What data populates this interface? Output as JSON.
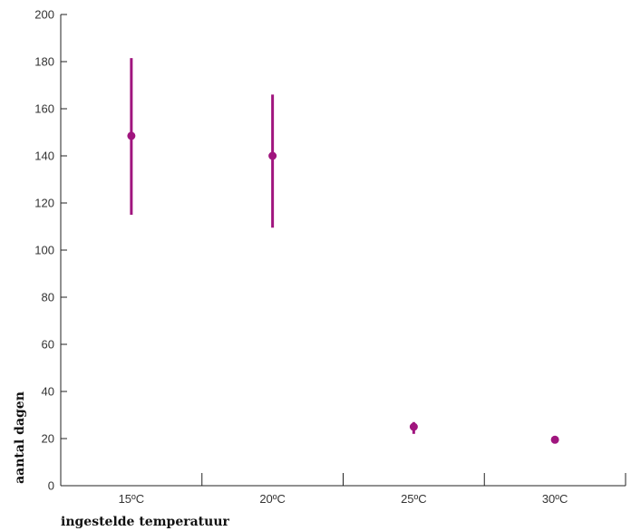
{
  "chart_data": {
    "type": "scatter",
    "title": "",
    "xlabel": "ingestelde temperatuur",
    "ylabel": "aantal dagen",
    "categories": [
      "15ºC",
      "20ºC",
      "25ºC",
      "30ºC"
    ],
    "series": [
      {
        "values": [
          148.5,
          140,
          25,
          19.5
        ],
        "error_low": [
          115,
          109.5,
          22,
          18
        ],
        "error_high": [
          181.5,
          166,
          27,
          21
        ],
        "color": "#a0157e"
      }
    ],
    "ylim": [
      0,
      200
    ],
    "yticks": [
      0,
      20,
      40,
      60,
      80,
      100,
      120,
      140,
      160,
      180,
      200
    ],
    "grid": false,
    "legend": "none"
  }
}
